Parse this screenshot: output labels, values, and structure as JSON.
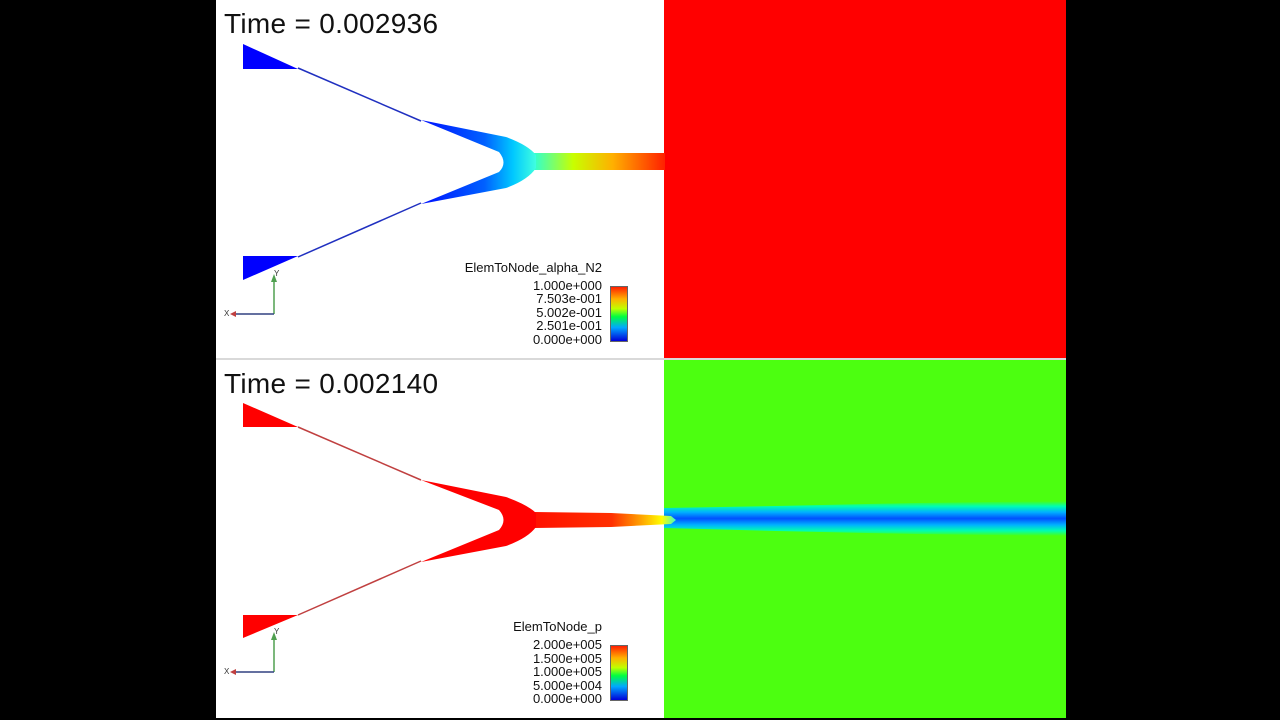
{
  "panels": {
    "top": {
      "time_label": "Time = 0.002936",
      "legend": {
        "title": "ElemToNode_alpha_N2",
        "ticks": [
          "1.000e+000",
          "7.503e-001",
          "5.002e-001",
          "2.501e-001",
          "0.000e+000"
        ]
      },
      "colors": {
        "background_field": "#ff0000",
        "geometry": "#0000ff"
      }
    },
    "bottom": {
      "time_label": "Time = 0.002140",
      "legend": {
        "title": "ElemToNode_p",
        "ticks": [
          "2.000e+005",
          "1.500e+005",
          "1.000e+005",
          "5.000e+004",
          "0.000e+000"
        ]
      },
      "colors": {
        "background_field": "#4cff10",
        "geometry": "#ff0000",
        "jet_core": "#0060ff"
      }
    }
  },
  "axes_triad": {
    "x_label": "X",
    "y_label": "Y"
  }
}
